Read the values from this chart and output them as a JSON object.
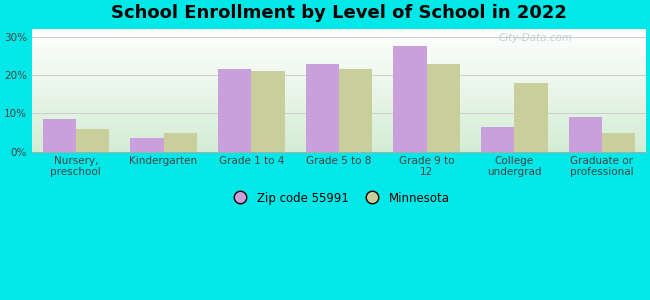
{
  "title": "School Enrollment by Level of School in 2022",
  "categories": [
    "Nursery,\npreschool",
    "Kindergarten",
    "Grade 1 to 4",
    "Grade 5 to 8",
    "Grade 9 to\n12",
    "College\nundergrad",
    "Graduate or\nprofessional"
  ],
  "zip_values": [
    8.5,
    3.5,
    21.5,
    23.0,
    27.5,
    6.5,
    9.0
  ],
  "mn_values": [
    6.0,
    5.0,
    21.0,
    21.5,
    23.0,
    18.0,
    5.0
  ],
  "zip_color": "#c9a0dc",
  "mn_color": "#c8cf9a",
  "zip_label": "Zip code 55991",
  "mn_label": "Minnesota",
  "bg_outer": "#00e8e8",
  "bg_plot_top": "#ffffff",
  "bg_plot_bottom": "#d4ecd4",
  "ylim": [
    0,
    32
  ],
  "yticks": [
    0,
    10,
    20,
    30
  ],
  "ytick_labels": [
    "0%",
    "10%",
    "20%",
    "30%"
  ],
  "title_fontsize": 13,
  "tick_fontsize": 7.5,
  "legend_fontsize": 8.5,
  "bar_width": 0.38,
  "watermark": "City-Data.com"
}
